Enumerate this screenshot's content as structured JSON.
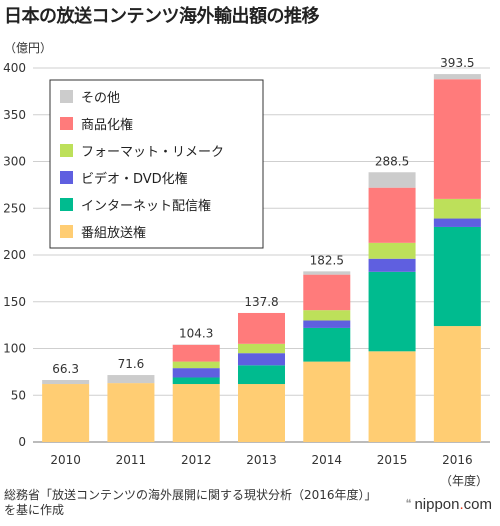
{
  "title": "日本の放送コンテンツ海外輸出額の推移",
  "source": "総務省「放送コンテンツの海外展開に関する現状分析（2016年度）」を基に作成",
  "brand": {
    "quote": "❝",
    "name_a": "nippon",
    "dot": ".",
    "name_b": "com"
  },
  "colors": {
    "その他": "#cccccc",
    "商品化権": "#ff7b7b",
    "フォーマット・リメーク": "#bde05a",
    "ビデオ・DVD化権": "#5f5fe0",
    "インターネット配信権": "#00bb8f",
    "番組放送権": "#ffcd73"
  },
  "chart_data": {
    "type": "bar",
    "stacked": true,
    "ylabel": "（億円）",
    "xlabel": "（年度）",
    "ylim": [
      0,
      400
    ],
    "yticks": [
      0,
      50,
      100,
      150,
      200,
      250,
      300,
      350,
      400
    ],
    "grid": true,
    "legend_position": "top-left",
    "categories": [
      "2010",
      "2011",
      "2012",
      "2013",
      "2014",
      "2015",
      "2016"
    ],
    "totals": [
      "66.3",
      "71.6",
      "104.3",
      "137.8",
      "182.5",
      "288.5",
      "393.5"
    ],
    "series": [
      {
        "name": "番組放送権",
        "values": [
          62,
          63,
          62,
          62,
          86,
          97,
          124
        ]
      },
      {
        "name": "インターネット配信権",
        "values": [
          0,
          0,
          7,
          20,
          36,
          85,
          106
        ]
      },
      {
        "name": "ビデオ・DVD化権",
        "values": [
          0,
          0,
          10,
          13,
          8,
          14,
          9
        ]
      },
      {
        "name": "フォーマット・リメーク",
        "values": [
          0,
          0,
          7,
          10,
          11,
          17,
          21
        ]
      },
      {
        "name": "商品化権",
        "values": [
          0,
          0,
          18,
          33,
          38,
          59,
          128
        ]
      },
      {
        "name": "その他",
        "values": [
          4.3,
          8.6,
          0.3,
          0,
          3.5,
          16.5,
          5.5
        ]
      }
    ],
    "legend_order": [
      "その他",
      "商品化権",
      "フォーマット・リメーク",
      "ビデオ・DVD化権",
      "インターネット配信権",
      "番組放送権"
    ]
  }
}
